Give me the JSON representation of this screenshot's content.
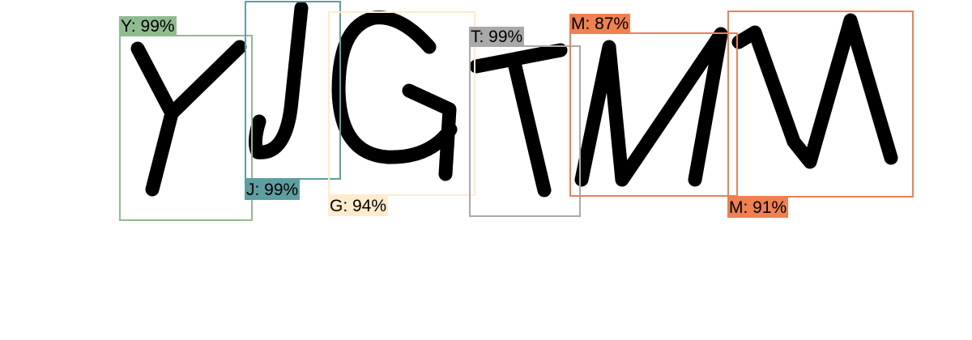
{
  "detections": [
    {
      "label": "Y: 99%",
      "color": "#8fbc8f"
    },
    {
      "label": "J: 99%",
      "color": "#5f9ea0"
    },
    {
      "label": "G: 94%",
      "color": "#ffebcd"
    },
    {
      "label": "T: 99%",
      "color": "#a9a9a9"
    },
    {
      "label": "M: 87%",
      "color": "#f08050"
    },
    {
      "label": "M: 91%",
      "color": "#f08050"
    }
  ]
}
